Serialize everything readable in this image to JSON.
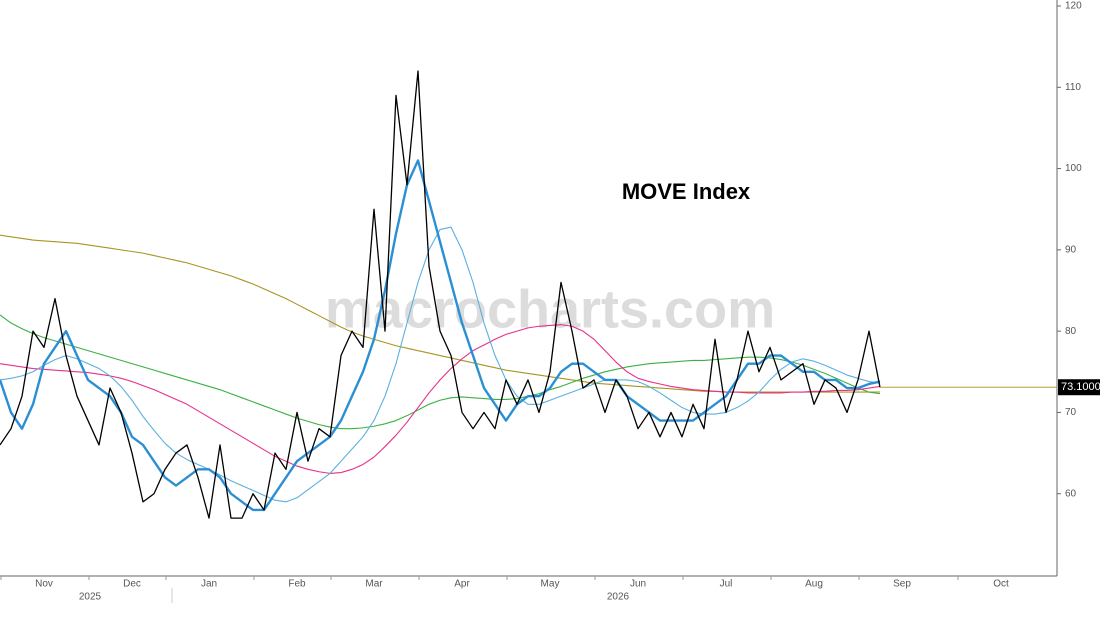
{
  "chart_data": {
    "type": "line",
    "title": "MOVE Index",
    "watermark": "macrocharts.com",
    "categories": [
      null,
      null,
      null,
      null,
      "Nov",
      null,
      null,
      null,
      null,
      null,
      null,
      null,
      "Dec",
      null,
      null,
      null,
      null,
      null,
      null,
      "Jan",
      null,
      null,
      null,
      null,
      null,
      null,
      null,
      "Feb",
      null,
      null,
      null,
      null,
      null,
      null,
      "Mar",
      null,
      null,
      null,
      null,
      null,
      null,
      null,
      "Apr",
      null,
      null,
      null,
      null,
      null,
      null,
      null,
      "May",
      null,
      null,
      null,
      null,
      null,
      null,
      null,
      "Jun",
      null,
      null,
      null,
      null,
      null,
      null,
      null,
      "Jul",
      null,
      null,
      null,
      null,
      null,
      null,
      null,
      "Aug",
      null,
      null,
      null,
      null,
      null,
      null,
      null,
      "Sep",
      null,
      null,
      null,
      null,
      null,
      null,
      null,
      null,
      "Oct",
      null,
      null,
      null,
      null
    ],
    "year_categories": [
      null,
      null,
      null,
      null,
      null,
      null,
      null,
      null,
      "2025",
      null,
      null,
      null,
      null,
      null,
      null,
      null,
      null,
      null,
      null,
      null,
      null,
      null,
      null,
      null,
      null,
      null,
      null,
      null,
      null,
      null,
      null,
      null,
      null,
      null,
      null,
      null,
      null,
      null,
      null,
      null,
      null,
      null,
      null,
      null,
      null,
      null,
      null,
      null,
      null,
      null,
      null,
      null,
      null,
      null,
      null,
      null,
      "2026",
      null,
      null,
      null,
      null,
      null,
      null,
      null,
      null,
      null,
      null,
      null,
      null,
      null,
      null,
      null,
      null,
      null,
      null,
      null,
      null,
      null,
      null,
      null,
      null,
      null,
      null,
      null,
      null,
      null,
      null,
      null,
      null,
      null,
      null,
      null,
      null,
      null,
      null,
      null
    ],
    "ylim": [
      50,
      120
    ],
    "yticks": [
      60,
      70,
      80,
      90,
      100,
      110,
      120
    ],
    "grid": false,
    "series": [
      {
        "color": "#a89522",
        "values": [
          91.8,
          91.6,
          91.4,
          91.2,
          91.1,
          91,
          90.9,
          90.8,
          90.6,
          90.4,
          90.2,
          90,
          89.8,
          89.6,
          89.3,
          89,
          88.7,
          88.4,
          88,
          87.6,
          87.2,
          86.8,
          86.3,
          85.8,
          85.2,
          84.6,
          84,
          83.3,
          82.6,
          81.9,
          81.2,
          80.5,
          79.9,
          79.4,
          79,
          78.6,
          78.2,
          77.9,
          77.6,
          77.3,
          77,
          76.7,
          76.4,
          76.1,
          75.8,
          75.5,
          75.2,
          75,
          74.8,
          74.6,
          74.4,
          74.2,
          74,
          73.8,
          73.6,
          73.5,
          73.4,
          73.3,
          73.2,
          73.1,
          73,
          72.9,
          72.8,
          72.7,
          72.6,
          72.6,
          72.5,
          72.5,
          72.5,
          72.5,
          72.5,
          72.5,
          72.5,
          72.5,
          72.5,
          72.5,
          72.5,
          72.5,
          72.5,
          72.5,
          72.5,
          null,
          null,
          null,
          null,
          null,
          null,
          null,
          null,
          null,
          null,
          null,
          null,
          null,
          null,
          null
        ]
      },
      {
        "color": "#3cb043",
        "values": [
          82,
          81,
          80.3,
          79.7,
          79.2,
          78.8,
          78.4,
          78,
          77.6,
          77.2,
          76.8,
          76.4,
          76,
          75.6,
          75.2,
          74.8,
          74.4,
          74,
          73.6,
          73.2,
          72.8,
          72.3,
          71.8,
          71.3,
          70.8,
          70.3,
          69.8,
          69.3,
          68.9,
          68.5,
          68.2,
          68,
          68,
          68.1,
          68.3,
          68.6,
          69,
          69.6,
          70.3,
          71,
          71.5,
          71.8,
          71.9,
          71.8,
          71.7,
          71.6,
          71.6,
          71.7,
          72,
          72.3,
          72.8,
          73.2,
          73.7,
          74.2,
          74.6,
          75,
          75.3,
          75.6,
          75.8,
          76,
          76.1,
          76.2,
          76.3,
          76.4,
          76.4,
          76.5,
          76.6,
          76.7,
          76.8,
          76.8,
          76.7,
          76.5,
          76.2,
          75.8,
          75.3,
          74.8,
          74.2,
          73.6,
          73,
          72.5,
          72.3,
          null,
          null,
          null,
          null,
          null,
          null,
          null,
          null,
          null,
          null,
          null,
          null,
          null,
          null,
          null
        ]
      },
      {
        "color": "#e8308a",
        "values": [
          76,
          75.8,
          75.6,
          75.4,
          75.3,
          75.2,
          75.1,
          75,
          74.9,
          74.7,
          74.5,
          74.2,
          73.8,
          73.3,
          72.8,
          72.2,
          71.6,
          71,
          70.2,
          69.4,
          68.6,
          67.8,
          67,
          66.2,
          65.4,
          64.6,
          64,
          63.4,
          63,
          62.7,
          62.5,
          62.6,
          63,
          63.6,
          64.5,
          65.8,
          67.2,
          68.8,
          70.6,
          72.4,
          74,
          75.4,
          76.6,
          77.6,
          78.3,
          79,
          79.6,
          80,
          80.4,
          80.6,
          80.7,
          80.8,
          80.6,
          80,
          79,
          77.6,
          76.2,
          75,
          74.2,
          73.8,
          73.5,
          73.2,
          73,
          72.8,
          72.7,
          72.6,
          72.5,
          72.5,
          72.4,
          72.4,
          72.4,
          72.4,
          72.5,
          72.5,
          72.6,
          72.6,
          72.7,
          72.7,
          72.8,
          73,
          73.2,
          null,
          null,
          null,
          null,
          null,
          null,
          null,
          null,
          null,
          null,
          null,
          null,
          null,
          null,
          null
        ]
      },
      {
        "color": "#5ab0e0",
        "values": [
          74,
          74.2,
          74.5,
          75,
          75.8,
          76.5,
          77,
          76.6,
          76,
          75.4,
          74.5,
          73.2,
          71.5,
          69.5,
          67.8,
          66.2,
          65,
          64.2,
          63.6,
          63,
          62.3,
          61.6,
          61,
          60.4,
          59.8,
          59.2,
          59,
          59.5,
          60.5,
          61.5,
          62.5,
          64,
          65.5,
          67,
          69,
          72,
          76,
          81,
          86,
          90,
          92.5,
          92.8,
          90,
          86,
          81,
          77,
          74,
          72,
          71,
          71,
          71.5,
          72,
          72.5,
          73,
          73.5,
          74,
          74,
          74,
          73.8,
          73.2,
          72.4,
          71.5,
          70.6,
          70,
          69.8,
          69.8,
          70,
          70.6,
          71.4,
          72.5,
          74,
          75.3,
          76.2,
          76.6,
          76.3,
          75.8,
          75.2,
          74.6,
          74.2,
          73.8,
          73.6,
          null,
          null,
          null,
          null,
          null,
          null,
          null,
          null,
          null,
          null,
          null,
          null,
          null,
          null,
          null
        ]
      },
      {
        "color": "#2a8fd4",
        "values": [
          74,
          70,
          68,
          71,
          76,
          78,
          80,
          77,
          74,
          73,
          72,
          70,
          67,
          66,
          64,
          62,
          61,
          62,
          63,
          63,
          62,
          60,
          59,
          58,
          58,
          60,
          62,
          64,
          65,
          66,
          67,
          69,
          72,
          75,
          79,
          85,
          92,
          98,
          101,
          96,
          91,
          86,
          81,
          77,
          73,
          71,
          69,
          71,
          72,
          72,
          73,
          75,
          76,
          76,
          75,
          74,
          74,
          72,
          71,
          70,
          69,
          69,
          69,
          69,
          70,
          71,
          72,
          74,
          76,
          76,
          77,
          77,
          76,
          75,
          75,
          74,
          74,
          73,
          73,
          73.5,
          73.8,
          null,
          null,
          null,
          null,
          null,
          null,
          null,
          null,
          null,
          null,
          null,
          null,
          null,
          null,
          null
        ]
      },
      {
        "color": "#000000",
        "values": [
          66,
          68,
          72,
          80,
          78,
          84,
          77,
          72,
          69,
          66,
          73,
          70,
          65,
          59,
          60,
          63,
          65,
          66,
          62,
          57,
          66,
          57,
          57,
          60,
          58,
          65,
          63,
          70,
          64,
          68,
          67,
          77,
          80,
          78,
          95,
          80,
          109,
          98,
          112,
          88,
          80,
          77,
          70,
          68,
          70,
          68,
          74,
          71,
          74,
          70,
          75,
          86,
          80,
          73,
          74,
          70,
          74,
          72,
          68,
          70,
          67,
          70,
          67,
          71,
          68,
          79,
          70,
          74,
          80,
          75,
          78,
          74,
          75,
          76,
          71,
          74,
          73,
          70,
          74,
          80,
          73.1,
          null,
          null,
          null,
          null,
          null,
          null,
          null,
          null,
          null,
          null,
          null,
          null,
          null,
          null,
          null
        ],
        "value_labels": [
          null,
          null,
          null,
          null,
          null,
          null,
          null,
          null,
          null,
          null,
          null,
          null,
          null,
          null,
          null,
          null,
          null,
          null,
          null,
          null,
          null,
          null,
          null,
          null,
          null,
          null,
          null,
          null,
          null,
          null,
          null,
          null,
          null,
          null,
          null,
          null,
          null,
          null,
          null,
          null,
          null,
          null,
          null,
          null,
          null,
          null,
          null,
          null,
          null,
          null,
          null,
          null,
          null,
          null,
          null,
          null,
          null,
          null,
          null,
          null,
          null,
          null,
          null,
          null,
          null,
          null,
          null,
          null,
          null,
          null,
          null,
          null,
          null,
          null,
          null,
          null,
          null,
          null,
          null,
          null,
          "73.1000",
          null,
          null,
          null,
          null,
          null,
          null,
          null,
          null,
          null,
          null,
          null,
          null,
          null,
          null,
          null
        ]
      }
    ]
  }
}
